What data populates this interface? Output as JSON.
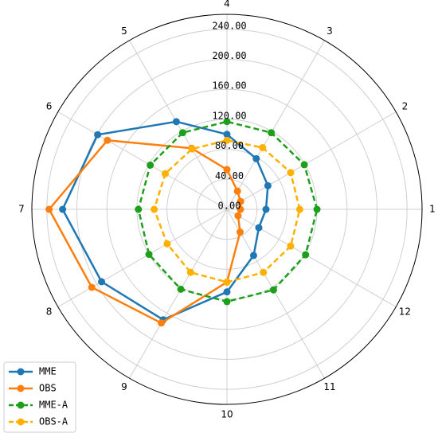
{
  "chart_data": {
    "type": "polar-line",
    "categories": [
      "1",
      "2",
      "3",
      "4",
      "5",
      "6",
      "7",
      "8",
      "9",
      "10",
      "11",
      "12"
    ],
    "ylim": [
      0,
      260
    ],
    "yticks": [
      {
        "value": 0,
        "label": "0.00"
      },
      {
        "value": 40,
        "label": "40.00"
      },
      {
        "value": 80,
        "label": "80.00"
      },
      {
        "value": 120,
        "label": "120.00"
      },
      {
        "value": 160,
        "label": "160.00"
      },
      {
        "value": 200,
        "label": "200.00"
      },
      {
        "value": 240,
        "label": "240.00"
      }
    ],
    "grid": true,
    "legend": "lower left",
    "series": [
      {
        "name": "MME",
        "color": "#1f77b4",
        "linestyle": "solid",
        "values": [
          52,
          63,
          78,
          100,
          135,
          199,
          219,
          193,
          170,
          110,
          71,
          49
        ]
      },
      {
        "name": "OBS",
        "color": "#ff7f0e",
        "linestyle": "solid",
        "values": [
          18,
          21,
          28,
          53,
          94,
          184,
          237,
          208,
          175,
          97,
          35,
          17
        ]
      },
      {
        "name": "MME-A",
        "color": "#1ca01c",
        "linestyle": "dashed",
        "values": [
          120,
          119,
          118,
          117,
          118,
          118,
          118,
          120,
          123,
          123,
          124,
          121
        ]
      },
      {
        "name": "OBS-A",
        "color": "#ffb000",
        "linestyle": "dashed",
        "values": [
          97,
          98,
          95,
          92,
          93,
          95,
          97,
          92,
          97,
          97,
          97,
          98
        ]
      }
    ]
  }
}
